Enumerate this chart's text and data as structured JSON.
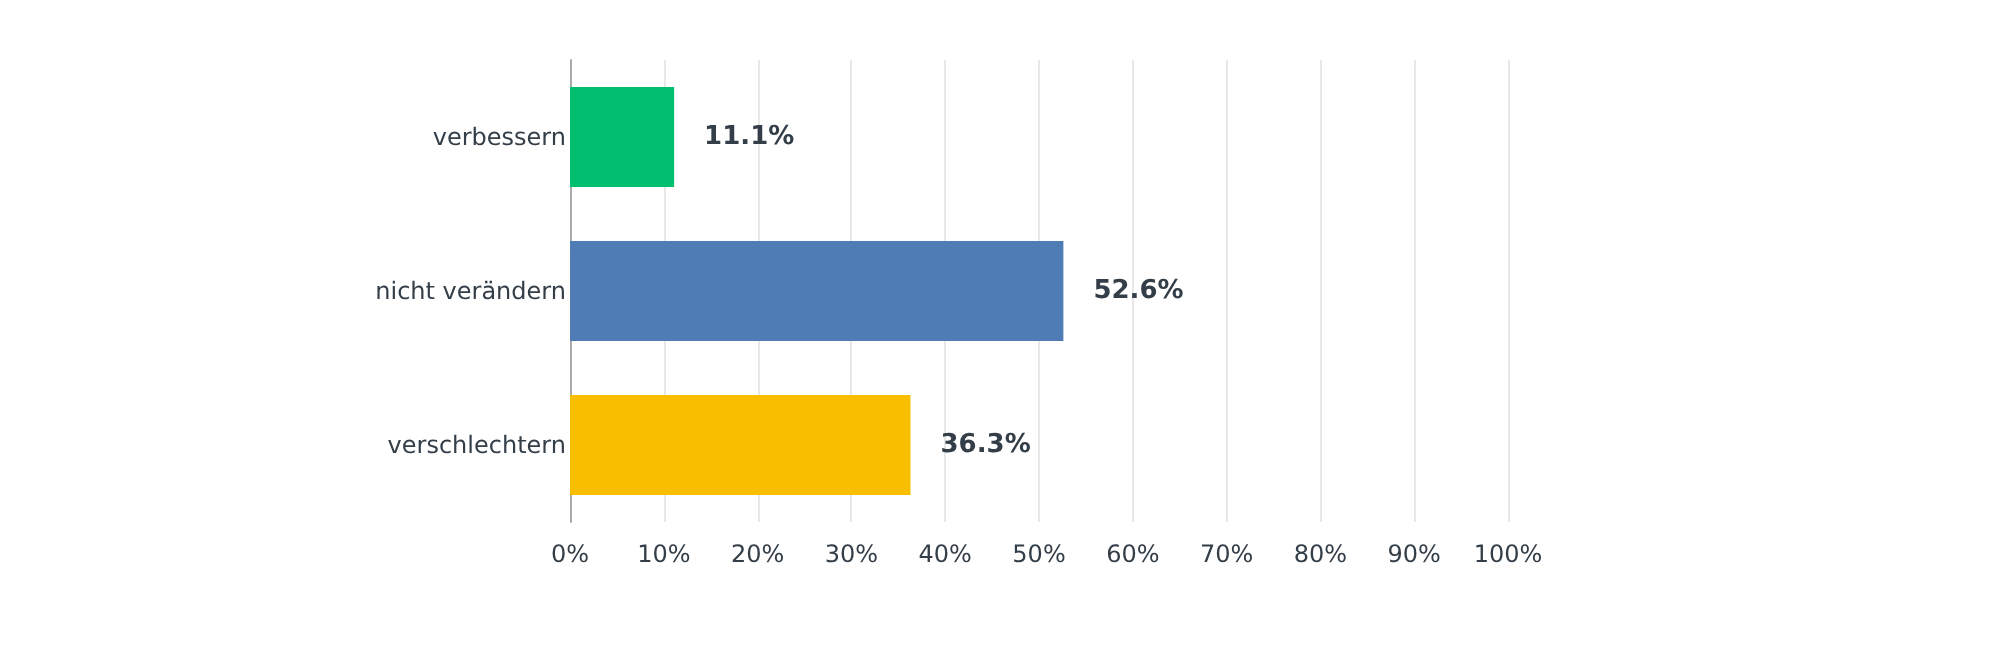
{
  "chart_data": {
    "type": "bar",
    "orientation": "horizontal",
    "categories": [
      "verbessern",
      "nicht verändern",
      "verschlechtern"
    ],
    "values": [
      11.1,
      52.6,
      36.3
    ],
    "colors": [
      "#00bf6f",
      "#507cb6",
      "#f9be00"
    ],
    "value_labels": [
      "11.1%",
      "52.6%",
      "36.3%"
    ],
    "xlim": [
      0,
      100
    ],
    "xticks": [
      {
        "value": 0,
        "label": "0%"
      },
      {
        "value": 10,
        "label": "10%"
      },
      {
        "value": 20,
        "label": "20%"
      },
      {
        "value": 30,
        "label": "30%"
      },
      {
        "value": 40,
        "label": "40%"
      },
      {
        "value": 50,
        "label": "50%"
      },
      {
        "value": 60,
        "label": "60%"
      },
      {
        "value": 70,
        "label": "70%"
      },
      {
        "value": 80,
        "label": "80%"
      },
      {
        "value": 90,
        "label": "90%"
      },
      {
        "value": 100,
        "label": "100%"
      }
    ],
    "grid": "x"
  }
}
